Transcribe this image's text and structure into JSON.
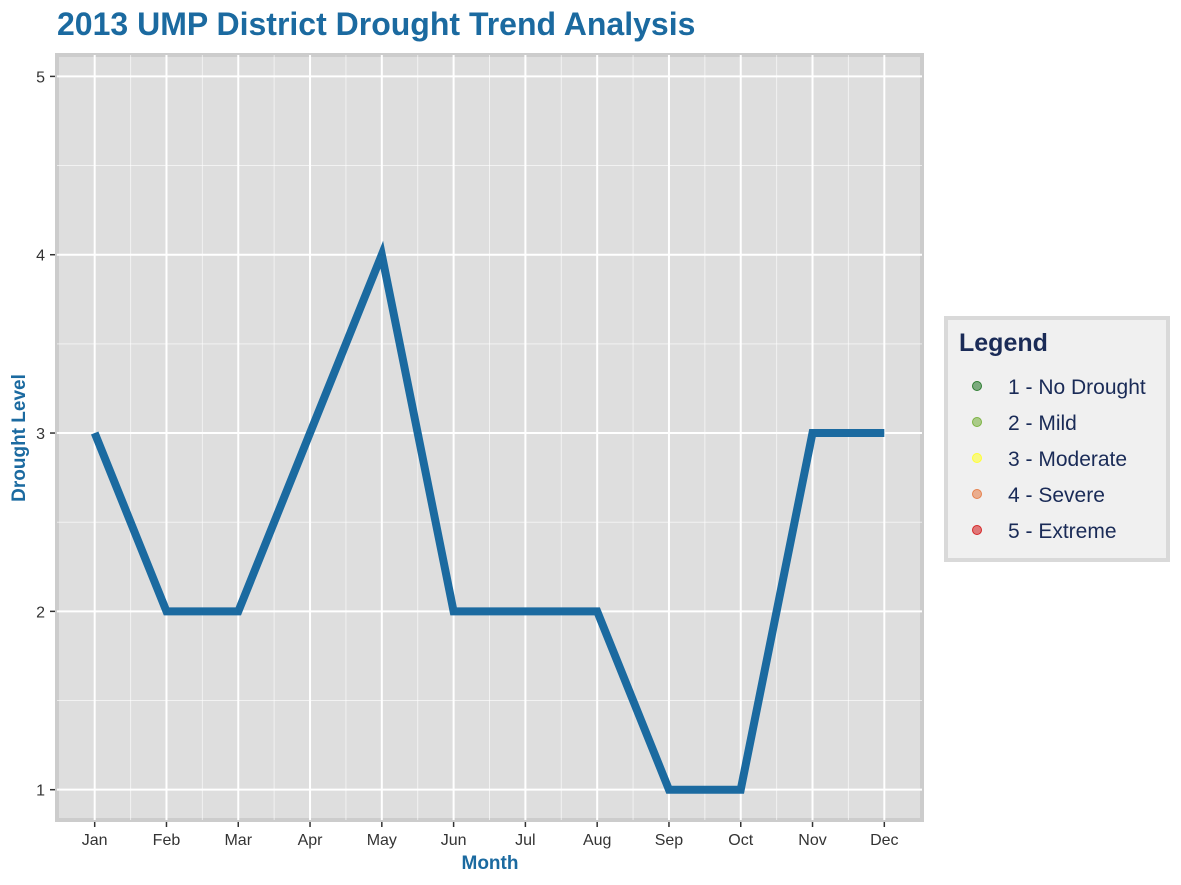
{
  "chart_data": {
    "type": "line",
    "title": "2013 UMP District Drought Trend Analysis",
    "xlabel": "Month",
    "ylabel": "Drought Level",
    "categories": [
      "Jan",
      "Feb",
      "Mar",
      "Apr",
      "May",
      "Jun",
      "Jul",
      "Aug",
      "Sep",
      "Oct",
      "Nov",
      "Dec"
    ],
    "series": [
      {
        "values": [
          3,
          2,
          2,
          3,
          4,
          2,
          2,
          2,
          1,
          1,
          3,
          3
        ]
      }
    ],
    "ylim": [
      0.83,
      5.12
    ],
    "yticks": [
      "1",
      "2",
      "3",
      "4",
      "5"
    ],
    "grid": true,
    "legend": {
      "title": "Legend",
      "placement": "right",
      "items": [
        {
          "label": "1 - No Drought",
          "color": "#2e7d32"
        },
        {
          "label": "2 - Mild",
          "color": "#7cb342"
        },
        {
          "label": "3 - Moderate",
          "color": "#ffff33"
        },
        {
          "label": "4 - Severe",
          "color": "#e6814d"
        },
        {
          "label": "5 - Extreme",
          "color": "#d62728"
        }
      ]
    },
    "colors": {
      "line": "#1b6aa0",
      "title": "#1b6aa0",
      "axis_title": "#1b6aa0",
      "legend_text": "#1a2b57",
      "panel": "#dedede",
      "panel_border": "#cccccc",
      "grid": "#ffffff",
      "legend_bg": "#f0f0f0",
      "legend_border": "#d9d9d9"
    }
  }
}
